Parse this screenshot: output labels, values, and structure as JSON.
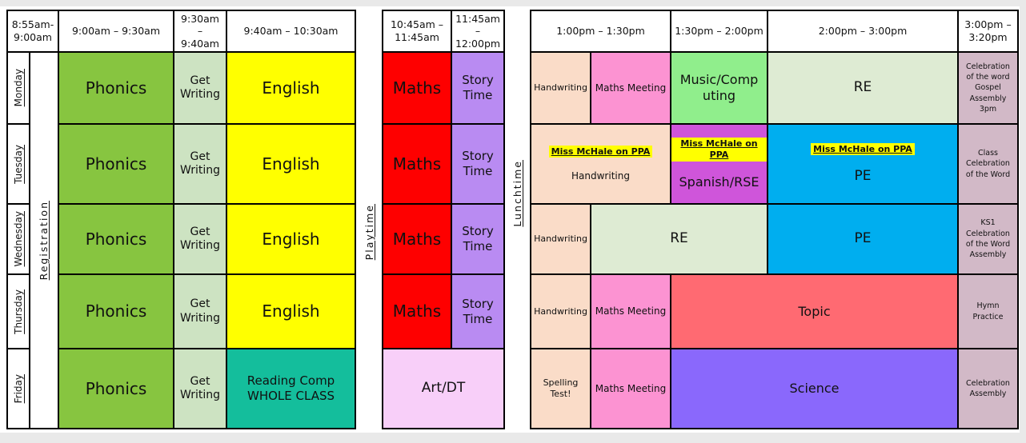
{
  "colors": {
    "phonics": "#87C540",
    "get_writing": "#CDE3C2",
    "english": "#FFFF00",
    "reading_comp": "#14BE9C",
    "maths": "#FE0000",
    "story_time": "#B98BF2",
    "art_dt": "#F8CFF9",
    "handwriting": "#FADCC8",
    "maths_meeting": "#FC93D2",
    "music_computing": "#90EE8C",
    "re": "#DEEBD3",
    "pe": "#00AEEF",
    "spanish_rse": "#CF55DA",
    "topic": "#FF6A72",
    "science": "#8A68FC",
    "assembly": "#D2B9C7",
    "ppa_highlight": "#FFFF00"
  },
  "left": {
    "h_register": "8:55am-9:00am",
    "h_phonics": "9:00am – 9:30am",
    "h_getwriting": "9:30am – 9:40am",
    "h_english": "9:40am – 10:30am",
    "registration": "Registration",
    "days": [
      "Monday",
      "Tuesday",
      "Wednesday",
      "Thursday",
      "Friday"
    ],
    "phonics": "Phonics",
    "get_writing": "Get Writing",
    "english": "English",
    "reading_comp_line1": "Reading Comp",
    "reading_comp_line2": "WHOLE CLASS"
  },
  "playtime": "Playtime",
  "lunchtime": "Lunchtime",
  "mid": {
    "h_maths": "10:45am – 11:45am",
    "h_story": "11:45am – 12:00pm",
    "maths": "Maths",
    "story": "Story Time",
    "art_dt": "Art/DT"
  },
  "right": {
    "h1": "1:00pm – 1:30pm",
    "h2": "1:30pm – 2:00pm",
    "h3": "2:00pm – 3:00pm",
    "h4": "3:00pm – 3:20pm",
    "ppa": "Miss McHale on PPA",
    "monday": {
      "c1": "Handwriting",
      "c2": "Maths Meeting",
      "c3": "Music/Computing",
      "c4": "RE",
      "c5": "Celebration of the word Gospel Assembly 3pm"
    },
    "tuesday": {
      "c1": "Handwriting",
      "c2": "Spanish/RSE",
      "c3": "PE",
      "c4": "Class Celebration of the Word"
    },
    "wednesday": {
      "c1": "Handwriting",
      "c2": "RE",
      "c3": "PE",
      "c4": "KS1 Celebration of the Word Assembly"
    },
    "thursday": {
      "c1": "Handwriting",
      "c2": "Maths Meeting",
      "c3": "Topic",
      "c4": "Hymn Practice"
    },
    "friday": {
      "c1": "Spelling Test!",
      "c2": "Maths Meeting",
      "c3": "Science",
      "c4": "Celebration Assembly"
    }
  }
}
